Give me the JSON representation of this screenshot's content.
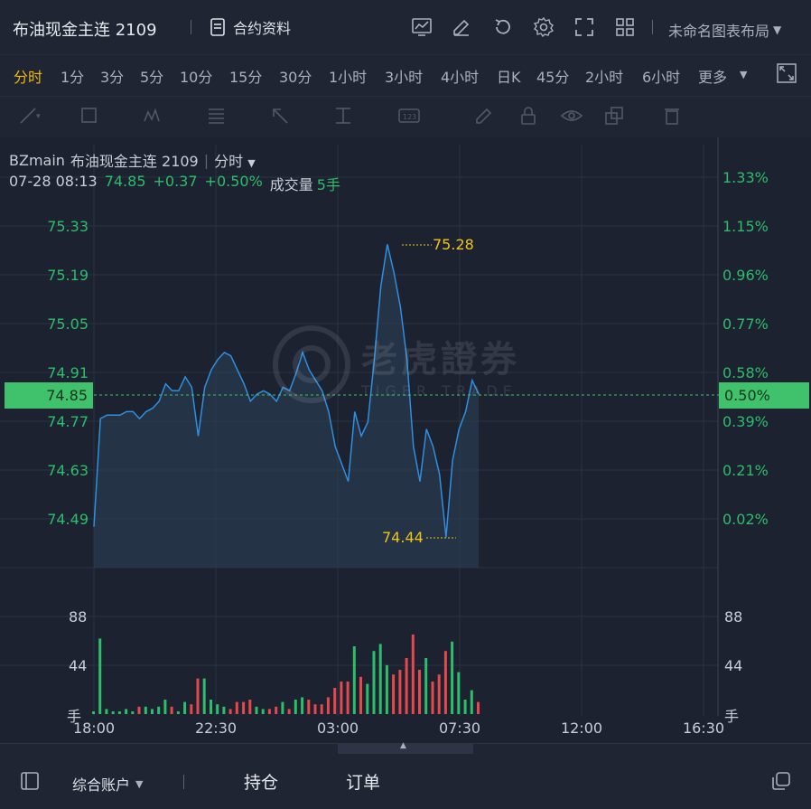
{
  "header": {
    "title": "布油现金主连 2109",
    "contract_info": "合约资料",
    "layout_name": "未命名图表布局"
  },
  "periods": [
    "分时",
    "1分",
    "3分",
    "5分",
    "10分",
    "15分",
    "30分",
    "1小时",
    "3小时",
    "4小时",
    "日K",
    "45分",
    "2小时",
    "6小时",
    "更多"
  ],
  "active_period": "分时",
  "legend": {
    "symbol": "BZmain",
    "name": "布油现金主连 2109",
    "period": "分时",
    "datetime": "07-28 08:13",
    "price": "74.85",
    "change": "+0.37",
    "change_pct": "+0.50%",
    "volume_label": "成交量",
    "volume_value": "5手"
  },
  "y_left": [
    "75.33",
    "75.19",
    "75.05",
    "74.91",
    "74.77",
    "74.63",
    "74.49"
  ],
  "y_right": [
    "1.33%",
    "1.15%",
    "0.96%",
    "0.77%",
    "0.58%",
    "0.39%",
    "0.21%",
    "0.02%"
  ],
  "current_price": "74.85",
  "current_pct": "0.50%",
  "high_label": "75.28",
  "low_label": "74.44",
  "volume_axis": {
    "v1": "88",
    "v2": "44",
    "unit": "手"
  },
  "x_axis": [
    "18:00",
    "22:30",
    "03:00",
    "07:30",
    "12:00",
    "16:30"
  ],
  "watermark": {
    "text": "老虎證券",
    "sub": "TIGER TRADE"
  },
  "bottom": {
    "account": "综合账户",
    "positions": "持仓",
    "orders": "订单"
  },
  "colors": {
    "up": "#2ebd6b",
    "line": "#2f8fe0",
    "accent": "#f0b90b",
    "label": "#f0c419"
  },
  "icons": [
    "chart-icon",
    "edit-icon",
    "refresh-icon",
    "gear-icon",
    "fullscreen-icon",
    "grid-icon",
    "panel-icon",
    "copy-icon"
  ],
  "chart_data": {
    "type": "line",
    "title": "布油现金主连 2109",
    "x_ticks": [
      "18:00",
      "22:30",
      "03:00",
      "07:30",
      "12:00",
      "16:30"
    ],
    "ylim": [
      74.42,
      75.4
    ],
    "y_ticks": [
      74.49,
      74.63,
      74.77,
      74.91,
      75.05,
      75.19,
      75.33
    ],
    "series": [
      {
        "values": [
          74.47,
          74.78,
          74.79,
          74.79,
          74.79,
          74.8,
          74.8,
          74.78,
          74.8,
          74.81,
          74.83,
          74.88,
          74.86,
          74.86,
          74.9,
          74.87,
          74.73,
          74.87,
          74.92,
          74.95,
          74.97,
          74.96,
          74.92,
          74.88,
          74.83,
          74.85,
          74.86,
          74.85,
          74.83,
          74.87,
          74.86,
          74.91,
          74.97,
          74.92,
          74.89,
          74.86,
          74.8,
          74.7,
          74.65,
          74.6,
          74.8,
          74.73,
          74.77,
          74.95,
          75.16,
          75.28,
          75.2,
          75.1,
          74.95,
          74.7,
          74.6,
          74.75,
          74.7,
          74.62,
          74.44,
          74.66,
          74.75,
          74.8,
          74.89,
          74.85
        ],
        "high": 75.28,
        "low": 74.44,
        "last": 74.85
      }
    ]
  }
}
